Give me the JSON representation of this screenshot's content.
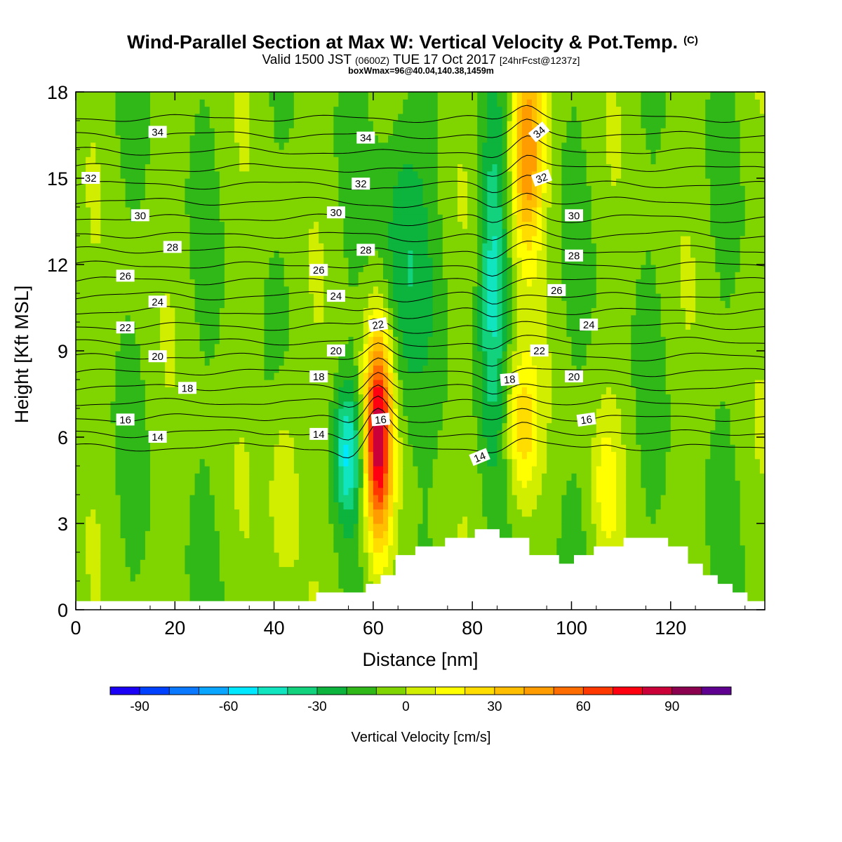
{
  "title": {
    "main": "Wind-Parallel Section at Max W: Vertical Velocity & Pot.Temp.",
    "copyright": "(C)",
    "valid_prefix": "Valid 1500 JST",
    "valid_zulu": "(0600Z)",
    "valid_date": "TUE 17 Oct 2017",
    "forecast": "[24hrFcst@1237z]",
    "boxline": "boxWmax=96@40.04,140.38,1459m"
  },
  "colors": {
    "levels": [
      {
        "lo": -100,
        "hi": -90,
        "color": "#1a00f5"
      },
      {
        "lo": -90,
        "hi": -80,
        "color": "#0040ff"
      },
      {
        "lo": -80,
        "hi": -70,
        "color": "#0a78ff"
      },
      {
        "lo": -70,
        "hi": -60,
        "color": "#0aa5ff"
      },
      {
        "lo": -60,
        "hi": -50,
        "color": "#00e8ff"
      },
      {
        "lo": -50,
        "hi": -40,
        "color": "#10e5c0"
      },
      {
        "lo": -40,
        "hi": -30,
        "color": "#12d27e"
      },
      {
        "lo": -30,
        "hi": -20,
        "color": "#0cb33c"
      },
      {
        "lo": -20,
        "hi": -10,
        "color": "#30b818"
      },
      {
        "lo": -10,
        "hi": 0,
        "color": "#80d400"
      },
      {
        "lo": 0,
        "hi": 10,
        "color": "#d2ee00"
      },
      {
        "lo": 10,
        "hi": 20,
        "color": "#ffff00"
      },
      {
        "lo": 20,
        "hi": 30,
        "color": "#ffdd00"
      },
      {
        "lo": 30,
        "hi": 40,
        "color": "#ffbe00"
      },
      {
        "lo": 40,
        "hi": 50,
        "color": "#ff9d00"
      },
      {
        "lo": 50,
        "hi": 60,
        "color": "#ff6d00"
      },
      {
        "lo": 60,
        "hi": 70,
        "color": "#ff3800"
      },
      {
        "lo": 70,
        "hi": 80,
        "color": "#ff0010"
      },
      {
        "lo": 80,
        "hi": 90,
        "color": "#cc0038"
      },
      {
        "lo": 90,
        "hi": 100,
        "color": "#8c0050"
      },
      {
        "lo": 100,
        "hi": 110,
        "color": "#600090"
      }
    ],
    "terrain": "#ffffff",
    "contour": "#000000"
  },
  "chart_data": {
    "type": "heatmap",
    "xlabel": "Distance [nm]",
    "ylabel": "Height [Kft MSL]",
    "xlim": [
      0,
      139
    ],
    "ylim": [
      0,
      18
    ],
    "xticks": [
      0,
      20,
      40,
      60,
      80,
      100,
      120
    ],
    "yticks": [
      0,
      3,
      6,
      9,
      12,
      15,
      18
    ],
    "colorbar": {
      "label": "Vertical Velocity [cm/s]",
      "ticks": [
        -90,
        -60,
        -30,
        0,
        30,
        60,
        90
      ],
      "range": [
        -100,
        110
      ],
      "step": 10
    },
    "field": "vertical velocity (cm/s)",
    "velocity_features": [
      {
        "x": 61,
        "z": 6.0,
        "w": 96,
        "sx": 2.0,
        "sz": 2.6
      },
      {
        "x": 91,
        "z": 16.0,
        "w": 58,
        "sx": 2.3,
        "sz": 2.6
      },
      {
        "x": 90,
        "z": 6.3,
        "w": 35,
        "sx": 2.3,
        "sz": 1.8
      },
      {
        "x": 55,
        "z": 5.5,
        "w": -40,
        "sx": 2.0,
        "sz": 1.6
      },
      {
        "x": 84,
        "z": 11.5,
        "w": -36,
        "sx": 2.0,
        "sz": 3.8
      },
      {
        "x": 66,
        "z": 12.0,
        "w": -22,
        "sx": 3.5,
        "sz": 4.0
      },
      {
        "x": 42,
        "z": 4.5,
        "w": 18,
        "sx": 2.2,
        "sz": 2.5
      },
      {
        "x": 107,
        "z": 4.2,
        "w": 18,
        "sx": 2.0,
        "sz": 1.8
      }
    ],
    "theta_contours": {
      "description": "Potential temperature contours (labels as shown)",
      "levels": [
        14,
        15,
        16,
        17,
        18,
        19,
        20,
        21,
        22,
        23,
        24,
        25,
        26,
        27,
        28,
        29,
        30,
        31,
        32,
        33,
        34,
        35
      ],
      "labels": [
        {
          "text": "34",
          "x": 16.5,
          "z": 16.6,
          "rot": 0
        },
        {
          "text": "34",
          "x": 58.5,
          "z": 16.4,
          "rot": 0
        },
        {
          "text": "34",
          "x": 93.5,
          "z": 16.6,
          "rot": -40
        },
        {
          "text": "32",
          "x": 3.0,
          "z": 15.0,
          "rot": 0
        },
        {
          "text": "32",
          "x": 57.5,
          "z": 14.8,
          "rot": 0
        },
        {
          "text": "32",
          "x": 94.0,
          "z": 15.0,
          "rot": -20
        },
        {
          "text": "30",
          "x": 13.0,
          "z": 13.7,
          "rot": 0
        },
        {
          "text": "30",
          "x": 52.5,
          "z": 13.8,
          "rot": 0
        },
        {
          "text": "30",
          "x": 100.5,
          "z": 13.7,
          "rot": 0
        },
        {
          "text": "28",
          "x": 19.5,
          "z": 12.6,
          "rot": 0
        },
        {
          "text": "28",
          "x": 58.5,
          "z": 12.5,
          "rot": 0
        },
        {
          "text": "28",
          "x": 100.5,
          "z": 12.3,
          "rot": 0
        },
        {
          "text": "26",
          "x": 10.0,
          "z": 11.6,
          "rot": 0
        },
        {
          "text": "26",
          "x": 49.0,
          "z": 11.8,
          "rot": 0
        },
        {
          "text": "26",
          "x": 97.0,
          "z": 11.1,
          "rot": 0
        },
        {
          "text": "24",
          "x": 16.5,
          "z": 10.7,
          "rot": 0
        },
        {
          "text": "24",
          "x": 52.5,
          "z": 10.9,
          "rot": 0
        },
        {
          "text": "24",
          "x": 103.5,
          "z": 9.9,
          "rot": 0
        },
        {
          "text": "22",
          "x": 10.0,
          "z": 9.8,
          "rot": 0
        },
        {
          "text": "22",
          "x": 61.0,
          "z": 9.9,
          "rot": -10
        },
        {
          "text": "22",
          "x": 93.5,
          "z": 9.0,
          "rot": 0
        },
        {
          "text": "20",
          "x": 16.5,
          "z": 8.8,
          "rot": 0
        },
        {
          "text": "20",
          "x": 52.5,
          "z": 9.0,
          "rot": 0
        },
        {
          "text": "20",
          "x": 100.5,
          "z": 8.1,
          "rot": 0
        },
        {
          "text": "18",
          "x": 22.5,
          "z": 7.7,
          "rot": 0
        },
        {
          "text": "18",
          "x": 49.0,
          "z": 8.1,
          "rot": 0
        },
        {
          "text": "18",
          "x": 87.5,
          "z": 8.0,
          "rot": -5
        },
        {
          "text": "16",
          "x": 10.0,
          "z": 6.6,
          "rot": 0
        },
        {
          "text": "16",
          "x": 61.5,
          "z": 6.6,
          "rot": -5
        },
        {
          "text": "16",
          "x": 103.0,
          "z": 6.6,
          "rot": -8
        },
        {
          "text": "14",
          "x": 16.5,
          "z": 6.0,
          "rot": 0
        },
        {
          "text": "14",
          "x": 49.0,
          "z": 6.1,
          "rot": 0
        },
        {
          "text": "14",
          "x": 81.5,
          "z": 5.3,
          "rot": -22
        }
      ]
    },
    "terrain_profile": {
      "x": [
        0,
        48.5,
        48.5,
        58.5,
        58.5,
        61.5,
        61.5,
        64.5,
        64.5,
        68.5,
        68.5,
        74.5,
        74.5,
        80.5,
        80.5,
        85.5,
        85.5,
        91.5,
        91.5,
        97.5,
        97.5,
        100.5,
        100.5,
        104.5,
        104.5,
        110.5,
        110.5,
        119.5,
        119.5,
        123.5,
        123.5,
        126.5,
        126.5,
        129.5,
        129.5,
        132.5,
        132.5,
        135.5,
        135.5,
        139
      ],
      "z": [
        0.3,
        0.3,
        0.6,
        0.6,
        0.9,
        0.9,
        1.2,
        1.2,
        1.9,
        1.9,
        2.2,
        2.2,
        2.5,
        2.5,
        2.8,
        2.8,
        2.5,
        2.5,
        1.9,
        1.9,
        1.6,
        1.6,
        1.9,
        1.9,
        2.2,
        2.2,
        2.5,
        2.5,
        2.2,
        2.2,
        1.6,
        1.6,
        1.2,
        1.2,
        0.9,
        0.9,
        0.6,
        0.6,
        0.3,
        0.3
      ]
    }
  }
}
